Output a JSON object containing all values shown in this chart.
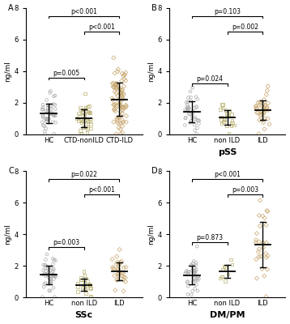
{
  "panels": [
    {
      "label": "A",
      "ylabel": "ng/ml",
      "subtitle": "",
      "groups": [
        "HC",
        "CTD-nonILD",
        "CTD-ILD"
      ],
      "markers": [
        "o",
        "s",
        "D"
      ],
      "colors": [
        "#aaaaaa",
        "#b8b070",
        "#c8a870"
      ],
      "means": [
        1.3,
        1.0,
        2.0
      ],
      "sds": [
        0.65,
        0.55,
        1.2
      ],
      "n_points": [
        48,
        38,
        90
      ],
      "significance": [
        {
          "groups": [
            0,
            1
          ],
          "p": "p=0.005",
          "y": 3.6
        },
        {
          "groups": [
            1,
            2
          ],
          "p": "p<0.001",
          "y": 6.5
        },
        {
          "groups": [
            0,
            2
          ],
          "p": "p<0.001",
          "y": 7.5
        }
      ]
    },
    {
      "label": "B",
      "ylabel": "ng/ml",
      "subtitle": "pSS",
      "groups": [
        "HC",
        "non ILD",
        "ILD"
      ],
      "markers": [
        "o",
        "s",
        "D"
      ],
      "colors": [
        "#aaaaaa",
        "#b8b070",
        "#c8a870"
      ],
      "means": [
        1.3,
        1.0,
        1.55
      ],
      "sds": [
        0.65,
        0.45,
        0.65
      ],
      "n_points": [
        42,
        22,
        37
      ],
      "significance": [
        {
          "groups": [
            0,
            1
          ],
          "p": "p=0.024",
          "y": 3.2
        },
        {
          "groups": [
            1,
            2
          ],
          "p": "p=0.002",
          "y": 6.5
        },
        {
          "groups": [
            0,
            2
          ],
          "p": "p=0.103",
          "y": 7.5
        }
      ]
    },
    {
      "label": "C",
      "ylabel": "ng/ml",
      "subtitle": "SSc",
      "groups": [
        "HC",
        "non ILD",
        "ILD"
      ],
      "markers": [
        "o",
        "s",
        "D"
      ],
      "colors": [
        "#aaaaaa",
        "#b8b070",
        "#c8a870"
      ],
      "means": [
        1.3,
        0.85,
        1.65
      ],
      "sds": [
        0.6,
        0.35,
        0.65
      ],
      "n_points": [
        48,
        22,
        32
      ],
      "significance": [
        {
          "groups": [
            0,
            1
          ],
          "p": "p=0.003",
          "y": 3.2
        },
        {
          "groups": [
            1,
            2
          ],
          "p": "p<0.001",
          "y": 6.5
        },
        {
          "groups": [
            0,
            2
          ],
          "p": "p=0.022",
          "y": 7.5
        }
      ]
    },
    {
      "label": "D",
      "ylabel": "ng/ml",
      "subtitle": "DM/PM",
      "groups": [
        "HC",
        "non ILD",
        "ILD"
      ],
      "markers": [
        "o",
        "s",
        "D"
      ],
      "colors": [
        "#aaaaaa",
        "#b8b070",
        "#c8a870"
      ],
      "means": [
        1.35,
        1.2,
        3.0
      ],
      "sds": [
        0.6,
        0.5,
        1.5
      ],
      "n_points": [
        42,
        10,
        28
      ],
      "significance": [
        {
          "groups": [
            0,
            1
          ],
          "p": "p=0.873",
          "y": 3.5
        },
        {
          "groups": [
            1,
            2
          ],
          "p": "p=0.003",
          "y": 6.5
        },
        {
          "groups": [
            0,
            2
          ],
          "p": "p<0.001",
          "y": 7.5
        }
      ]
    }
  ],
  "ylim": [
    0,
    8
  ],
  "yticks": [
    0,
    2,
    4,
    6,
    8
  ],
  "fig_bg": "#ffffff",
  "fs_ylabel": 6.5,
  "fs_panel": 7,
  "fs_tick": 6,
  "fs_sig": 5.5,
  "fs_subtitle": 8
}
